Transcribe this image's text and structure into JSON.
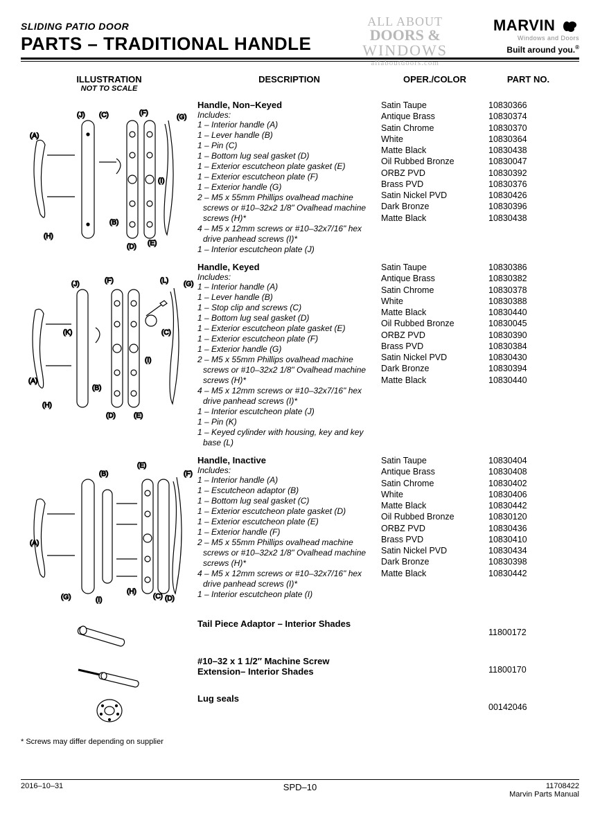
{
  "header": {
    "overline": "SLIDING PATIO DOOR",
    "title": "PARTS – TRADITIONAL HANDLE"
  },
  "watermark": {
    "l1": "ALL ABOUT",
    "l2": "DOORS &",
    "l3": "WINDOWS",
    "l4": "allaboutdoors.com"
  },
  "brand": {
    "name": "MARVIN",
    "sub": "Windows and Doors",
    "tag": "Built around you."
  },
  "columns": {
    "illus": "ILLUSTRATION",
    "illus_sub": "NOT TO SCALE",
    "desc": "DESCRIPTION",
    "oper": "OPER./COLOR",
    "part": "PART NO."
  },
  "sections": {
    "nonkeyed": {
      "title": "Handle, Non–Keyed",
      "includes": "Includes:",
      "items": [
        "1 – Interior handle (A)",
        "1 – Lever handle (B)",
        "1 – Pin (C)",
        "1 – Bottom lug seal gasket (D)",
        "1 – Exterior escutcheon plate gasket (E)",
        "1 – Exterior escutcheon plate (F)",
        "1 – Exterior handle (G)",
        "2 – M5 x 55mm Phillips ovalhead machine screws or #10–32x2 1/8\" Ovalhead machine screws (H)*",
        "4 – M5 x 12mm screws or #10–32x7/16\" hex drive panhead screws (I)*",
        "1 – Interior escutcheon plate (J)"
      ],
      "rows": [
        {
          "c": "Satin Taupe",
          "p": "10830366"
        },
        {
          "c": "Antique Brass",
          "p": "10830374"
        },
        {
          "c": "Satin Chrome",
          "p": "10830370"
        },
        {
          "c": "White",
          "p": "10830364"
        },
        {
          "c": "Matte Black",
          "p": "10830438"
        },
        {
          "c": "Oil Rubbed Bronze",
          "p": "10830047"
        },
        {
          "c": "ORBZ PVD",
          "p": "10830392"
        },
        {
          "c": "Brass PVD",
          "p": "10830376"
        },
        {
          "c": "Satin Nickel PVD",
          "p": "10830426"
        },
        {
          "c": "Dark Bronze",
          "p": "10830396"
        },
        {
          "c": "Matte Black",
          "p": "10830438"
        }
      ]
    },
    "keyed": {
      "title": "Handle, Keyed",
      "includes": "Includes:",
      "items": [
        "1 – Interior handle (A)",
        "1 – Lever handle (B)",
        "1 – Stop clip and screws (C)",
        "1 – Bottom lug seal gasket (D)",
        "1 – Exterior escutcheon plate gasket (E)",
        "1 – Exterior escutcheon plate (F)",
        "1 – Exterior handle (G)",
        "2 – M5 x 55mm Phillips ovalhead machine screws or #10–32x2 1/8\" Ovalhead machine screws (H)*",
        "4 – M5 x 12mm screws or #10–32x7/16\" hex drive panhead screws (I)*",
        "1 – Interior escutcheon plate (J)",
        "1 – Pin (K)",
        "1 – Keyed cylinder with housing, key and key base (L)"
      ],
      "rows": [
        {
          "c": "Satin Taupe",
          "p": "10830386"
        },
        {
          "c": "Antique Brass",
          "p": "10830382"
        },
        {
          "c": "Satin Chrome",
          "p": "10830378"
        },
        {
          "c": "White",
          "p": "10830388"
        },
        {
          "c": "Matte Black",
          "p": "10830440"
        },
        {
          "c": "Oil Rubbed Bronze",
          "p": "10830045"
        },
        {
          "c": "ORBZ PVD",
          "p": "10830390"
        },
        {
          "c": "Brass PVD",
          "p": "10830384"
        },
        {
          "c": "Satin Nickel PVD",
          "p": "10830430"
        },
        {
          "c": "Dark Bronze",
          "p": "10830394"
        },
        {
          "c": "Matte Black",
          "p": "10830440"
        }
      ]
    },
    "inactive": {
      "title": "Handle, Inactive",
      "includes": "Includes:",
      "items": [
        "1 – Interior handle (A)",
        "1 – Escutcheon adaptor (B)",
        "1 – Bottom lug seal gasket (C)",
        "1 – Exterior escutcheon plate gasket (D)",
        "1 – Exterior escutcheon plate (E)",
        "1 – Exterior handle (F)",
        "2 – M5 x 55mm Phillips ovalhead machine screws or #10–32x2 1/8\" Ovalhead machine screws (H)*",
        "4 – M5 x 12mm screws or #10–32x7/16\" hex drive panhead screws (I)*",
        "1 – Interior escutcheon plate (I)"
      ],
      "rows": [
        {
          "c": "Satin Taupe",
          "p": "10830404"
        },
        {
          "c": "Antique Brass",
          "p": "10830408"
        },
        {
          "c": "Satin Chrome",
          "p": "10830402"
        },
        {
          "c": "White",
          "p": "10830406"
        },
        {
          "c": "Matte Black",
          "p": "10830442"
        },
        {
          "c": "Oil Rubbed Bronze",
          "p": "10830120"
        },
        {
          "c": "ORBZ PVD",
          "p": "10830436"
        },
        {
          "c": "Brass PVD",
          "p": "10830410"
        },
        {
          "c": "Satin Nickel PVD",
          "p": "10830434"
        },
        {
          "c": "Dark Bronze",
          "p": "10830398"
        },
        {
          "c": "Matte Black",
          "p": "10830442"
        }
      ]
    }
  },
  "extras": {
    "tail": {
      "title": "Tail Piece Adaptor – Interior Shades",
      "part": "11800172"
    },
    "screw": {
      "title": "#10–32 x 1 1/2″ Machine Screw Extension– Interior Shades",
      "part": "11800170"
    },
    "lug": {
      "title": "Lug seals",
      "part": "00142046"
    }
  },
  "footnote": "*    Screws may differ depending on supplier",
  "footer": {
    "date": "2016–10–31",
    "page": "SPD–10",
    "docno": "11708422",
    "docname": "Marvin Parts Manual"
  }
}
